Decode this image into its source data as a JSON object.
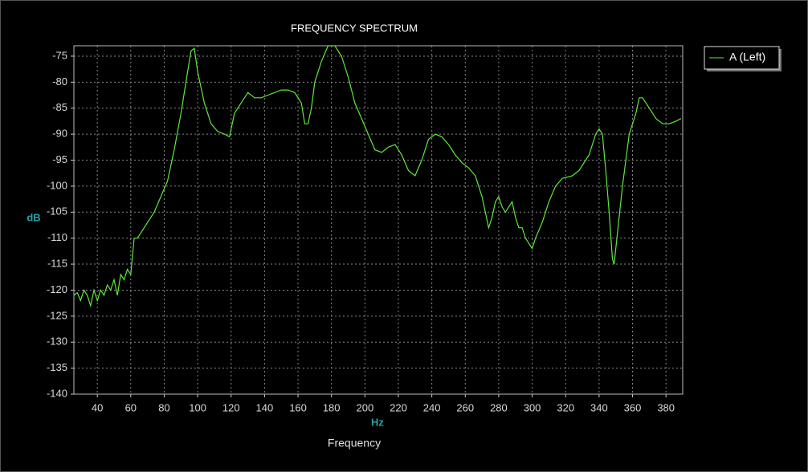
{
  "chart_data": {
    "type": "line",
    "title": "FREQUENCY SPECTRUM",
    "xlabel": "Frequency",
    "x_unit_label": "Hz",
    "ylabel": "dB",
    "x": [
      26,
      28,
      30,
      32,
      34,
      36,
      38,
      40,
      42,
      44,
      46,
      48,
      50,
      52,
      54,
      56,
      58,
      60,
      62,
      64,
      66,
      70,
      74,
      78,
      82,
      86,
      90,
      94,
      96,
      98,
      100,
      104,
      108,
      112,
      116,
      119,
      122,
      126,
      130,
      134,
      138,
      142,
      146,
      150,
      154,
      158,
      162,
      164,
      166,
      168,
      170,
      174,
      178,
      182,
      186,
      190,
      194,
      198,
      202,
      206,
      210,
      214,
      218,
      222,
      226,
      230,
      234,
      238,
      242,
      246,
      250,
      254,
      258,
      262,
      266,
      270,
      274,
      276,
      278,
      280,
      282,
      284,
      286,
      288,
      290,
      292,
      294,
      296,
      298,
      300,
      302,
      306,
      310,
      314,
      318,
      324,
      328,
      334,
      338,
      340,
      342,
      344,
      346,
      348,
      349,
      350,
      354,
      358,
      362,
      364,
      366,
      370,
      374,
      378,
      382,
      386,
      389
    ],
    "series": [
      {
        "name": "A (Left)",
        "color": "#5fe83c",
        "values": [
          -121,
          -120.5,
          -122,
          -120,
          -121,
          -123,
          -120,
          -122,
          -120,
          -121,
          -119,
          -120,
          -118,
          -121,
          -117,
          -118,
          -116,
          -117,
          -110,
          -110,
          -109,
          -107,
          -105,
          -102,
          -99,
          -93,
          -86,
          -78,
          -74,
          -73.5,
          -78,
          -84,
          -88,
          -89.5,
          -90,
          -90.5,
          -86,
          -84,
          -82,
          -83,
          -83,
          -82.5,
          -82,
          -81.5,
          -81.5,
          -82,
          -84,
          -88,
          -88,
          -85,
          -80,
          -76,
          -73,
          -73,
          -75,
          -79,
          -84,
          -87,
          -90,
          -93,
          -93.5,
          -92.5,
          -92,
          -94,
          -97,
          -98,
          -95,
          -91,
          -90,
          -90.5,
          -92,
          -94,
          -95.5,
          -96.5,
          -98,
          -102,
          -108,
          -106,
          -103,
          -102,
          -104,
          -105,
          -104,
          -103,
          -106,
          -108,
          -108,
          -110,
          -111,
          -112,
          -110,
          -107,
          -103,
          -100,
          -98.5,
          -98,
          -97,
          -94,
          -90,
          -89,
          -90,
          -97,
          -105,
          -114,
          -115,
          -112,
          -100,
          -90,
          -86,
          -83,
          -83,
          -85,
          -87,
          -88,
          -88,
          -87.5,
          -87
        ]
      }
    ],
    "xlim": [
      26,
      390
    ],
    "ylim": [
      -140,
      -73
    ],
    "xticks": [
      40,
      60,
      80,
      100,
      120,
      140,
      160,
      180,
      200,
      220,
      240,
      260,
      280,
      300,
      320,
      340,
      360,
      380
    ],
    "yticks": [
      -75,
      -80,
      -85,
      -90,
      -95,
      -100,
      -105,
      -110,
      -115,
      -120,
      -125,
      -130,
      -135,
      -140
    ],
    "grid": true,
    "legend": "upper right"
  }
}
